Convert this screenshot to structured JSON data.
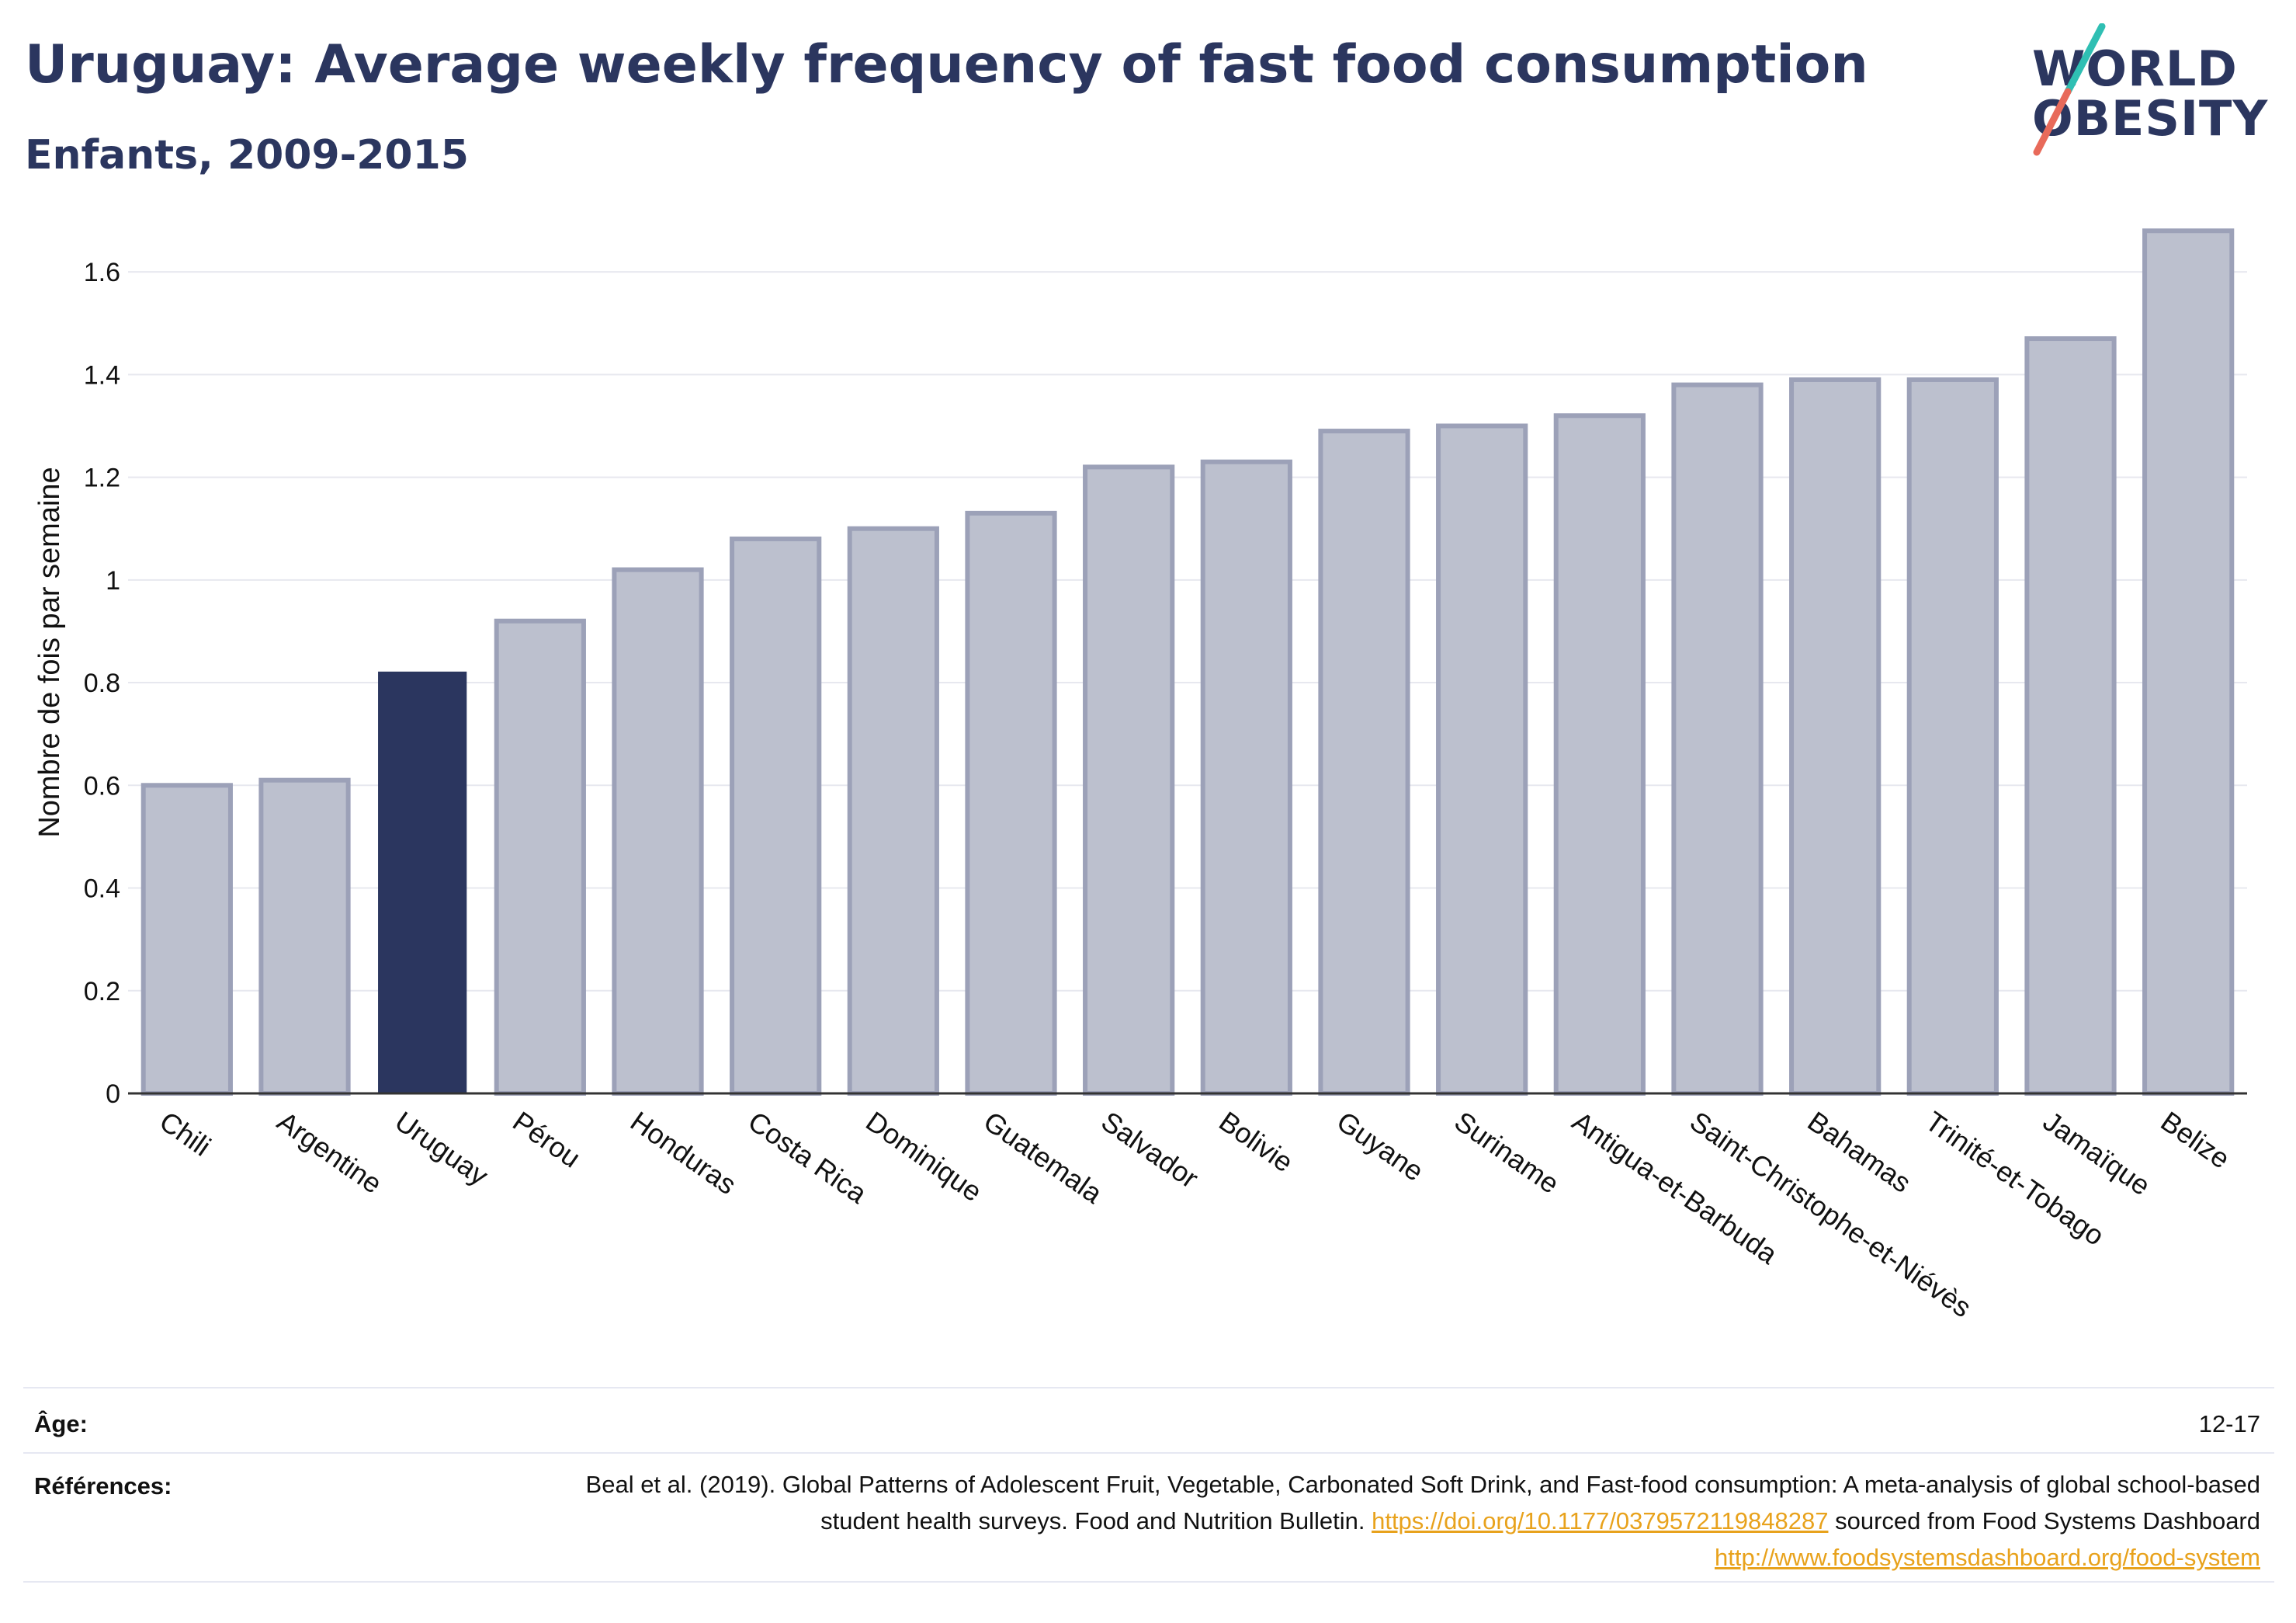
{
  "header": {
    "title": "Uruguay: Average weekly frequency of fast food consumption",
    "subtitle": "Enfants, 2009-2015"
  },
  "logo": {
    "line1": "WORLD",
    "line2": "OBESITY",
    "slash_colors": [
      "#2fbfb3",
      "#e86a5a"
    ]
  },
  "colors": {
    "highlight": "#2b365f",
    "bar": "#bcc0ce",
    "bar_border": "#9ca1b8",
    "link": "#e8a21c"
  },
  "chart_data": {
    "type": "bar",
    "title": "",
    "xlabel": "",
    "ylabel": "Nombre de fois par semaine",
    "ylim": [
      0,
      1.7
    ],
    "yticks": [
      0,
      0.2,
      0.4,
      0.6,
      0.8,
      1,
      1.2,
      1.4,
      1.6
    ],
    "ytick_labels": [
      "0",
      "0.2",
      "0.4",
      "0.6",
      "0.8",
      "1",
      "1.2",
      "1.4",
      "1.6"
    ],
    "grid": true,
    "highlight": "Uruguay",
    "categories": [
      "Chili",
      "Argentine",
      "Uruguay",
      "Pérou",
      "Honduras",
      "Costa Rica",
      "Dominique",
      "Guatemala",
      "Salvador",
      "Bolivie",
      "Guyane",
      "Suriname",
      "Antigua-et-Barbuda",
      "Saint-Christophe-et-Niévès",
      "Bahamas",
      "Trinité-et-Tobago",
      "Jamaïque",
      "Belize"
    ],
    "values": [
      0.6,
      0.61,
      0.82,
      0.92,
      1.02,
      1.08,
      1.1,
      1.13,
      1.22,
      1.23,
      1.29,
      1.3,
      1.32,
      1.38,
      1.39,
      1.39,
      1.47,
      1.68
    ]
  },
  "footer": {
    "age_label": "Âge:",
    "age_value": "12-17",
    "refs_label": "Références:",
    "refs_text1": "Beal et al. (2019). Global Patterns of Adolescent Fruit, Vegetable, Carbonated Soft Drink, and Fast-food consumption: A meta-analysis of global school-based student health surveys. Food and Nutrition Bulletin.",
    "refs_link1": "https://doi.org/10.1177/0379572119848287",
    "refs_text2": "sourced from Food Systems Dashboard",
    "refs_link2": "http://www.foodsystemsdashboard.org/food-system"
  }
}
